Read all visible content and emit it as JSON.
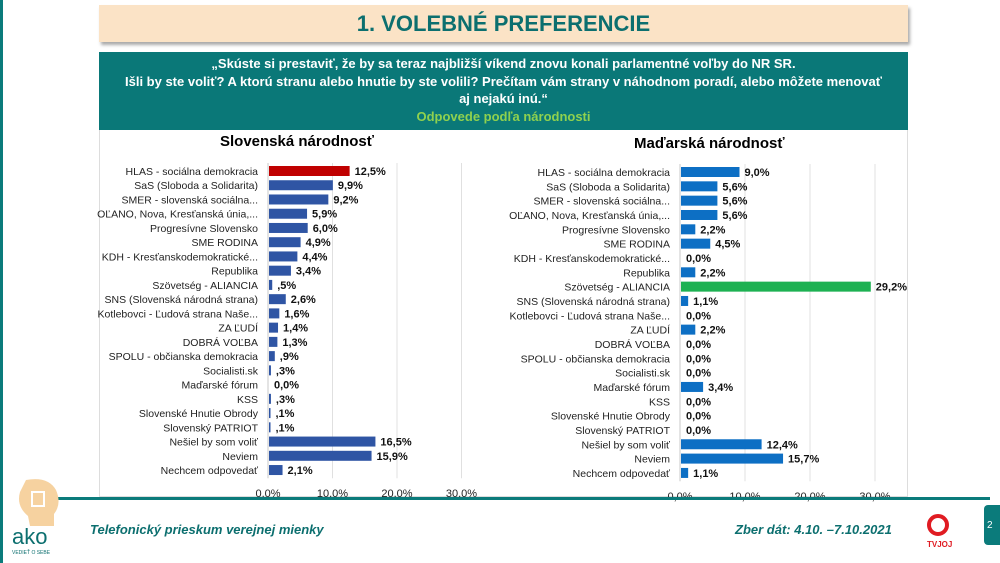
{
  "header": {
    "title": "1. VOLEBNÉ PREFERENCIE"
  },
  "question": {
    "line1": "„Skúste si prestaviť, že by sa teraz najbližší víkend znovu konali parlamentné voľby do NR SR.",
    "line2": "Išli by ste voliť? A ktorú stranu alebo hnutie by ste volili? Prečítam vám strany v náhodnom poradí, alebo môžete menovať aj nejakú inú.“",
    "subtitle": "Odpovede podľa národnosti"
  },
  "footer": {
    "survey": "Telefonický prieskum verejnej mienky",
    "dates": "Zber dát: 4.10. –7.10.2021",
    "page": "2",
    "logo_text": "ako",
    "logo_tagline": "VEDIEŤ O SEBE",
    "partner_logo": "TVJOJ"
  },
  "chart_data": [
    {
      "type": "bar",
      "orientation": "horizontal",
      "title": "Slovenská národnosť",
      "xlim": [
        0,
        30
      ],
      "xticks": [
        "0,0%",
        "10,0%",
        "20,0%",
        "30,0%"
      ],
      "grid": true,
      "categories": [
        "HLAS - sociálna demokracia",
        "SaS (Sloboda a Solidarita)",
        "SMER - slovenská sociálna...",
        "OĽANO, Nova, Kresťanská únia,...",
        "Progresívne Slovensko",
        "SME RODINA",
        "KDH - Kresťanskodemokratické...",
        "Republika",
        "Szövetség - ALIANCIA",
        "SNS (Slovenská národná strana)",
        "Kotlebovci - Ľudová strana Naše...",
        "ZA ĽUDÍ",
        "DOBRÁ VOĽBA",
        "SPOLU - občianska demokracia",
        "Socialisti.sk",
        "Maďarské fórum",
        "KSS",
        "Slovenské Hnutie Obrody",
        "Slovenský PATRIOT",
        "Nešiel by som voliť",
        "Neviem",
        "Nechcem odpovedať"
      ],
      "values": [
        12.5,
        9.9,
        9.2,
        5.9,
        6.0,
        4.9,
        4.4,
        3.4,
        0.5,
        2.6,
        1.6,
        1.4,
        1.3,
        0.9,
        0.3,
        0.0,
        0.3,
        0.1,
        0.1,
        16.5,
        15.9,
        2.1
      ],
      "labels": [
        "12,5%",
        "9,9%",
        "9,2%",
        "5,9%",
        "6,0%",
        "4,9%",
        "4,4%",
        "3,4%",
        ",5%",
        "2,6%",
        "1,6%",
        "1,4%",
        "1,3%",
        ",9%",
        ",3%",
        "0,0%",
        ",3%",
        ",1%",
        ",1%",
        "16,5%",
        "15,9%",
        "2,1%"
      ],
      "bar_color": "#2f55a4",
      "highlight": {
        "index": 0,
        "color": "#c00000"
      }
    },
    {
      "type": "bar",
      "orientation": "horizontal",
      "title": "Maďarská národnosť",
      "xlim": [
        0,
        30
      ],
      "xticks": [
        "0,0%",
        "10,0%",
        "20,0%",
        "30,0%"
      ],
      "grid": true,
      "categories": [
        "HLAS - sociálna demokracia",
        "SaS (Sloboda a Solidarita)",
        "SMER - slovenská sociálna...",
        "OĽANO, Nova, Kresťanská únia,...",
        "Progresívne Slovensko",
        "SME RODINA",
        "KDH - Kresťanskodemokratické...",
        "Republika",
        "Szövetség - ALIANCIA",
        "SNS (Slovenská národná strana)",
        "Kotlebovci - Ľudová strana Naše...",
        "ZA ĽUDÍ",
        "DOBRÁ VOĽBA",
        "SPOLU - občianska demokracia",
        "Socialisti.sk",
        "Maďarské fórum",
        "KSS",
        "Slovenské Hnutie Obrody",
        "Slovenský PATRIOT",
        "Nešiel by som voliť",
        "Neviem",
        "Nechcem odpovedať"
      ],
      "values": [
        9.0,
        5.6,
        5.6,
        5.6,
        2.2,
        4.5,
        0.0,
        2.2,
        29.2,
        1.1,
        0.0,
        2.2,
        0.0,
        0.0,
        0.0,
        3.4,
        0.0,
        0.0,
        0.0,
        12.4,
        15.7,
        1.1
      ],
      "labels": [
        "9,0%",
        "5,6%",
        "5,6%",
        "5,6%",
        "2,2%",
        "4,5%",
        "0,0%",
        "2,2%",
        "29,2%",
        "1,1%",
        "0,0%",
        "2,2%",
        "0,0%",
        "0,0%",
        "0,0%",
        "3,4%",
        "0,0%",
        "0,0%",
        "0,0%",
        "12,4%",
        "15,7%",
        "1,1%"
      ],
      "bar_color": "#0d6fc4",
      "highlight": {
        "index": 8,
        "color": "#1db152"
      }
    }
  ]
}
